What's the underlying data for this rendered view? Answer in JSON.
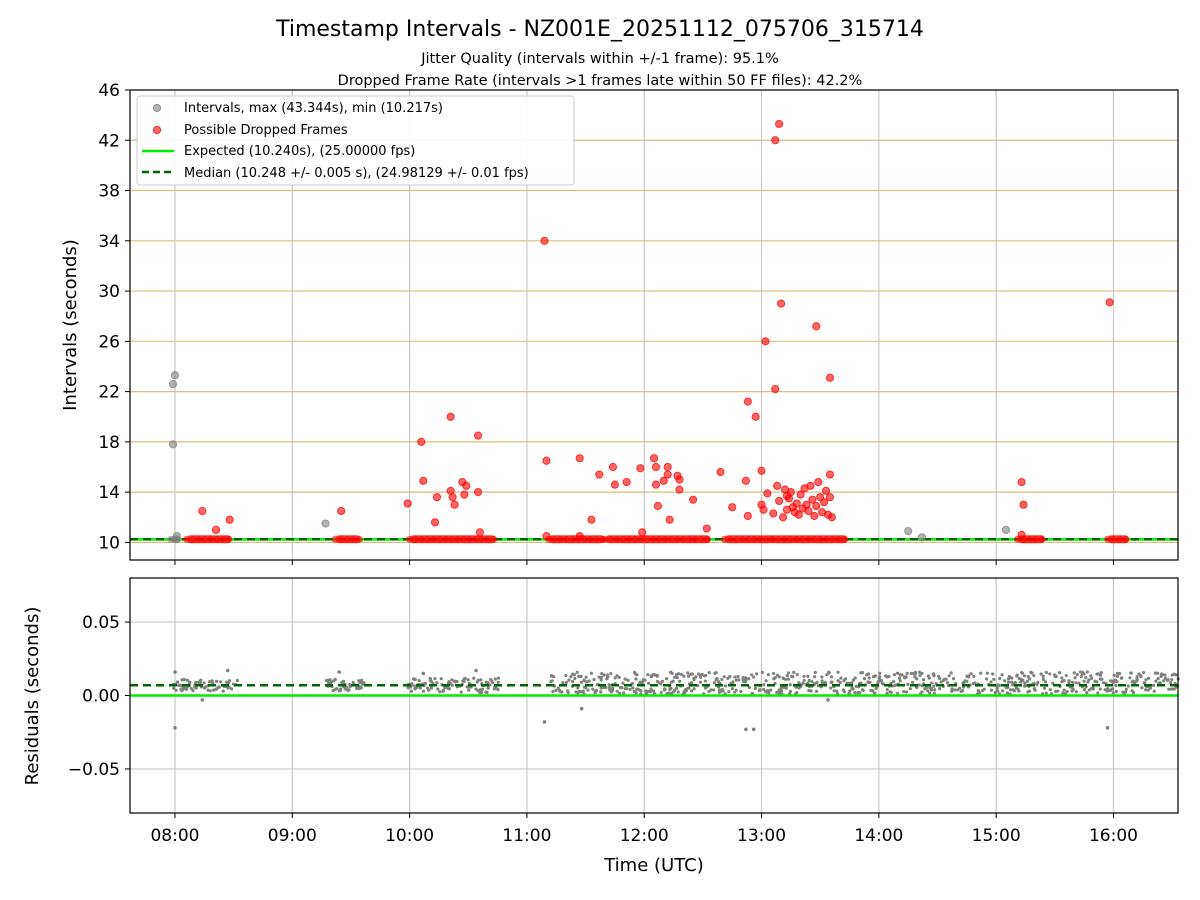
{
  "title": "Timestamp Intervals - NZ001E_20251112_075706_315714",
  "subtitle_1": "Jitter Quality (intervals within +/-1 frame): 95.1%",
  "subtitle_2": "Dropped Frame Rate (intervals >1 frames late within 50 FF files): 42.2%",
  "colors": {
    "intervals": "#808080",
    "dropped": "#ff0000",
    "expected": "#00ee00",
    "median": "#006400",
    "hgrid_top": "#d6c27a",
    "vgrid": "#c8c8c8"
  },
  "chart_data": [
    {
      "type": "scatter",
      "xlabel": "",
      "ylabel": "Intervals (seconds)",
      "xlim": [
        "07:37",
        "16:33"
      ],
      "ylim": [
        8.6,
        46
      ],
      "yticks": [
        10,
        14,
        18,
        22,
        26,
        30,
        34,
        38,
        42,
        46
      ],
      "grid": true,
      "legend_position": "top-left",
      "legend": [
        {
          "label": "Intervals, max (43.344s), min (10.217s)",
          "kind": "marker",
          "color": "#808080"
        },
        {
          "label": "Possible Dropped Frames",
          "kind": "marker",
          "color": "#ff0000"
        },
        {
          "label": "Expected (10.240s), (25.00000 fps)",
          "kind": "line",
          "color": "#00ee00"
        },
        {
          "label": "Median (10.248 +/- 0.005 s), (24.98129 +/- 0.01 fps)",
          "kind": "dashed",
          "color": "#006400"
        }
      ],
      "reference_lines": [
        {
          "name": "Expected",
          "y": 10.24,
          "style": "solid",
          "color": "#00ee00"
        },
        {
          "name": "Median",
          "y": 10.248,
          "style": "dashed",
          "color": "#006400"
        }
      ],
      "baseline_segments": [
        {
          "from": "07:58",
          "to": "08:03",
          "y": 10.248,
          "color": "#808080"
        },
        {
          "from": "08:06",
          "to": "08:29",
          "y": 10.248,
          "color": "#ff0000"
        },
        {
          "from": "09:22",
          "to": "09:35",
          "y": 10.248,
          "color": "#ff0000"
        },
        {
          "from": "10:00",
          "to": "10:44",
          "y": 10.248,
          "color": "#ff0000"
        },
        {
          "from": "11:11",
          "to": "11:40",
          "y": 10.248,
          "color": "#ff0000"
        },
        {
          "from": "11:40",
          "to": "12:34",
          "y": 10.248,
          "color": "#ff0000"
        },
        {
          "from": "12:41",
          "to": "13:44",
          "y": 10.248,
          "color": "#ff0000"
        },
        {
          "from": "15:11",
          "to": "15:25",
          "y": 10.248,
          "color": "#ff0000"
        },
        {
          "from": "15:57",
          "to": "16:08",
          "y": 10.248,
          "color": "#ff0000"
        }
      ],
      "series": [
        {
          "name": "Intervals",
          "points": [
            [
              "07:59",
              17.8
            ],
            [
              "07:59",
              22.6
            ],
            [
              "08:00",
              23.3
            ],
            [
              "08:01",
              10.5
            ],
            [
              "09:17",
              11.5
            ],
            [
              "14:15",
              10.9
            ],
            [
              "14:22",
              10.4
            ],
            [
              "15:05",
              11.0
            ]
          ]
        },
        {
          "name": "Possible Dropped Frames",
          "points": [
            [
              "08:14",
              12.5
            ],
            [
              "08:21",
              11.0
            ],
            [
              "08:28",
              11.8
            ],
            [
              "09:25",
              12.5
            ],
            [
              "09:59",
              13.1
            ],
            [
              "10:06",
              18.0
            ],
            [
              "10:07",
              14.9
            ],
            [
              "10:13",
              11.6
            ],
            [
              "10:14",
              13.6
            ],
            [
              "10:21",
              20.0
            ],
            [
              "10:21",
              14.1
            ],
            [
              "10:22",
              13.6
            ],
            [
              "10:23",
              13.0
            ],
            [
              "10:27",
              14.8
            ],
            [
              "10:28",
              13.8
            ],
            [
              "10:29",
              14.5
            ],
            [
              "10:35",
              14.0
            ],
            [
              "10:35",
              18.5
            ],
            [
              "10:36",
              10.8
            ],
            [
              "11:09",
              34.0
            ],
            [
              "11:10",
              16.5
            ],
            [
              "11:10",
              10.5
            ],
            [
              "11:27",
              16.7
            ],
            [
              "11:27",
              10.5
            ],
            [
              "11:33",
              11.8
            ],
            [
              "11:37",
              15.4
            ],
            [
              "11:44",
              16.0
            ],
            [
              "11:45",
              14.6
            ],
            [
              "11:51",
              14.8
            ],
            [
              "11:58",
              15.9
            ],
            [
              "11:59",
              10.8
            ],
            [
              "12:05",
              16.7
            ],
            [
              "12:06",
              16.0
            ],
            [
              "12:06",
              14.6
            ],
            [
              "12:07",
              12.9
            ],
            [
              "12:10",
              14.9
            ],
            [
              "12:12",
              15.4
            ],
            [
              "12:12",
              16.0
            ],
            [
              "12:13",
              11.8
            ],
            [
              "12:17",
              15.3
            ],
            [
              "12:18",
              15.0
            ],
            [
              "12:18",
              14.2
            ],
            [
              "12:25",
              13.4
            ],
            [
              "12:32",
              11.1
            ],
            [
              "12:39",
              15.6
            ],
            [
              "12:45",
              12.8
            ],
            [
              "12:52",
              14.9
            ],
            [
              "12:53",
              12.1
            ],
            [
              "12:53",
              21.2
            ],
            [
              "12:57",
              20.0
            ],
            [
              "13:00",
              15.7
            ],
            [
              "13:00",
              13.0
            ],
            [
              "13:01",
              12.6
            ],
            [
              "13:02",
              26.0
            ],
            [
              "13:03",
              13.9
            ],
            [
              "13:06",
              12.3
            ],
            [
              "13:07",
              22.2
            ],
            [
              "13:07",
              42.0
            ],
            [
              "13:08",
              14.5
            ],
            [
              "13:09",
              43.3
            ],
            [
              "13:09",
              13.3
            ],
            [
              "13:10",
              29.0
            ],
            [
              "13:11",
              12.0
            ],
            [
              "13:12",
              14.2
            ],
            [
              "13:13",
              13.7
            ],
            [
              "13:13",
              12.6
            ],
            [
              "13:14",
              13.5
            ],
            [
              "13:15",
              14.0
            ],
            [
              "13:16",
              12.8
            ],
            [
              "13:17",
              12.4
            ],
            [
              "13:18",
              13.1
            ],
            [
              "13:19",
              12.2
            ],
            [
              "13:20",
              13.8
            ],
            [
              "13:21",
              12.7
            ],
            [
              "13:22",
              14.3
            ],
            [
              "13:23",
              13.0
            ],
            [
              "13:24",
              12.5
            ],
            [
              "13:25",
              14.5
            ],
            [
              "13:26",
              13.4
            ],
            [
              "13:27",
              12.1
            ],
            [
              "13:28",
              12.9
            ],
            [
              "13:28",
              27.2
            ],
            [
              "13:29",
              14.8
            ],
            [
              "13:30",
              13.6
            ],
            [
              "13:31",
              12.4
            ],
            [
              "13:32",
              13.2
            ],
            [
              "13:33",
              14.1
            ],
            [
              "13:34",
              12.2
            ],
            [
              "13:35",
              13.6
            ],
            [
              "13:35",
              23.1
            ],
            [
              "13:35",
              15.4
            ],
            [
              "13:36",
              12.0
            ],
            [
              "15:13",
              14.8
            ],
            [
              "15:14",
              13.0
            ],
            [
              "15:13",
              10.6
            ],
            [
              "15:58",
              29.1
            ]
          ]
        }
      ]
    },
    {
      "type": "scatter",
      "xlabel": "Time (UTC)",
      "ylabel": "Residuals (seconds)",
      "xlim": [
        "07:37",
        "16:33"
      ],
      "ylim": [
        -0.08,
        0.08
      ],
      "yticks": [
        -0.05,
        0,
        0.05
      ],
      "ytick_labels": [
        "−0.05",
        "0.00",
        "0.05"
      ],
      "xticks": [
        "08:00",
        "09:00",
        "10:00",
        "11:00",
        "12:00",
        "13:00",
        "14:00",
        "15:00",
        "16:00"
      ],
      "grid": true,
      "reference_lines": [
        {
          "name": "Expected",
          "y": 0.0,
          "style": "solid",
          "color": "#00ee00"
        },
        {
          "name": "Median",
          "y": 0.007,
          "style": "dashed",
          "color": "#006400"
        }
      ],
      "residual_bands": [
        {
          "from": "07:59",
          "to": "08:32",
          "ymin": 0.003,
          "ymax": 0.011
        },
        {
          "from": "09:17",
          "to": "09:36",
          "ymin": 0.003,
          "ymax": 0.011
        },
        {
          "from": "09:59",
          "to": "10:45",
          "ymin": 0.002,
          "ymax": 0.012
        },
        {
          "from": "11:12",
          "to": "16:33",
          "ymin": 0.001,
          "ymax": 0.016
        }
      ],
      "series": [
        {
          "name": "Residual outliers",
          "points": [
            [
              "08:00",
              -0.022
            ],
            [
              "08:00",
              0.016
            ],
            [
              "08:14",
              -0.003
            ],
            [
              "08:27",
              0.017
            ],
            [
              "09:24",
              0.016
            ],
            [
              "10:07",
              0.015
            ],
            [
              "10:34",
              0.017
            ],
            [
              "11:09",
              -0.018
            ],
            [
              "11:28",
              -0.009
            ],
            [
              "12:52",
              -0.023
            ],
            [
              "12:56",
              -0.023
            ],
            [
              "13:34",
              -0.003
            ],
            [
              "15:57",
              -0.022
            ]
          ]
        }
      ]
    }
  ]
}
